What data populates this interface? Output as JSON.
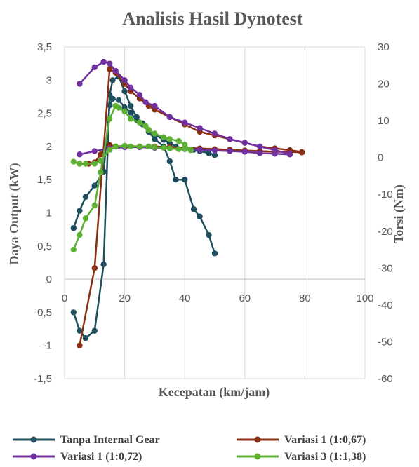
{
  "chart_data": {
    "type": "line",
    "title": "Analisis Hasil Dynotest",
    "xlabel": "Kecepatan (km/jam)",
    "ylabel": "Daya Output  (kW)",
    "y2label": "Torsi (Nm)",
    "xlim": [
      0,
      100
    ],
    "ylim": [
      -1.5,
      3.5
    ],
    "y2lim": [
      -60,
      30
    ],
    "x_ticks": [
      "0",
      "20",
      "40",
      "60",
      "80",
      "100"
    ],
    "y_ticks": [
      "-1,5",
      "-1",
      "-0,5",
      "0",
      "0,5",
      "1",
      "1,5",
      "2",
      "2,5",
      "3",
      "3,5"
    ],
    "y2_ticks": [
      "-60",
      "-50",
      "-40",
      "-30",
      "-20",
      "-10",
      "0",
      "10",
      "20",
      "30"
    ],
    "grid": "vertical",
    "legend_position": "bottom",
    "series": [
      {
        "name": "Tanpa Internal Gear",
        "color": "#1f4e5f",
        "power": {
          "x": [
            3,
            5,
            7,
            10,
            13,
            15,
            16,
            18,
            20,
            22,
            24,
            26,
            28,
            30,
            33,
            35,
            37,
            40,
            43,
            45,
            48,
            50
          ],
          "y": [
            0.77,
            1.03,
            1.24,
            1.41,
            1.62,
            2.62,
            2.72,
            2.7,
            2.59,
            2.51,
            2.4,
            2.35,
            2.25,
            2.18,
            2.1,
            2.05,
            2.0,
            1.97,
            1.95,
            1.93,
            1.9,
            1.87
          ]
        },
        "torque": {
          "x": [
            3,
            5,
            7,
            10,
            13,
            15,
            16,
            18,
            20,
            22,
            24,
            26,
            28,
            30,
            33,
            35,
            37,
            40,
            43,
            45,
            48,
            50
          ],
          "y": [
            -42,
            -47,
            -49,
            -47,
            -29,
            17,
            21,
            22,
            18,
            14,
            11,
            9,
            7,
            5,
            3,
            -1,
            -6,
            -6,
            -14,
            -16,
            -21,
            -26
          ]
        }
      },
      {
        "name": "Variasi 1 (1:0,67)",
        "color": "#8b2f14",
        "power": {
          "x": [
            5,
            8,
            10,
            12,
            15,
            17,
            20,
            25,
            30,
            35,
            40,
            45,
            50,
            55,
            60,
            65,
            70,
            75,
            79
          ],
          "y": [
            1.74,
            1.74,
            1.76,
            1.88,
            2.02,
            2.0,
            2.01,
            2.0,
            2.0,
            1.99,
            1.98,
            1.97,
            1.96,
            1.95,
            1.94,
            1.93,
            1.92,
            1.92,
            1.91
          ]
        },
        "torque": {
          "x": [
            5,
            10,
            15,
            17,
            20,
            22,
            25,
            28,
            30,
            35,
            40,
            45,
            50,
            55,
            60,
            65,
            70,
            75,
            79
          ],
          "y": [
            -51,
            -30,
            24,
            23,
            20,
            18,
            16,
            14,
            13,
            11,
            9,
            7,
            6,
            5,
            4,
            3,
            2.5,
            2,
            1.5
          ]
        }
      },
      {
        "name": "Variasi 1 (1:0,72)",
        "color": "#7030a0",
        "power": {
          "x": [
            5,
            10,
            15,
            20,
            25,
            30,
            35,
            40,
            45,
            50,
            55,
            60,
            65,
            70,
            75
          ],
          "y": [
            1.88,
            1.93,
            1.97,
            1.99,
            1.99,
            1.98,
            1.97,
            1.96,
            1.95,
            1.94,
            1.93,
            1.92,
            1.9,
            1.89,
            1.88
          ]
        },
        "torque": {
          "x": [
            5,
            10,
            13,
            15,
            17,
            20,
            22,
            25,
            27,
            30,
            35,
            40,
            45,
            50,
            55,
            60,
            65,
            70,
            75
          ],
          "y": [
            20,
            24.5,
            26,
            25.5,
            23.5,
            21,
            19,
            17,
            15,
            14,
            11,
            9.5,
            8,
            6.5,
            5,
            4,
            3,
            2,
            1
          ]
        }
      },
      {
        "name": "Variasi 3 (1:1,38)",
        "color": "#5db132",
        "power": {
          "x": [
            3,
            5,
            7,
            10,
            12,
            15,
            17,
            20,
            22,
            25,
            28,
            30,
            33,
            35,
            38,
            40,
            42
          ],
          "y": [
            1.77,
            1.74,
            1.74,
            1.74,
            1.78,
            1.95,
            2.0,
            2.01,
            2.0,
            2.0,
            2.0,
            1.99,
            1.98,
            1.97,
            1.96,
            1.96,
            1.95
          ]
        },
        "torque": {
          "x": [
            3,
            5,
            7,
            10,
            12,
            15,
            17,
            18,
            20,
            22,
            25,
            27,
            28,
            30,
            33,
            35,
            38,
            40,
            42
          ],
          "y": [
            -25,
            -21,
            -16.5,
            -13,
            -4,
            10.5,
            14,
            13.5,
            12.5,
            10.5,
            9.5,
            8.5,
            7.5,
            6.5,
            5.5,
            5,
            4.5,
            3.5,
            2
          ]
        }
      }
    ]
  }
}
